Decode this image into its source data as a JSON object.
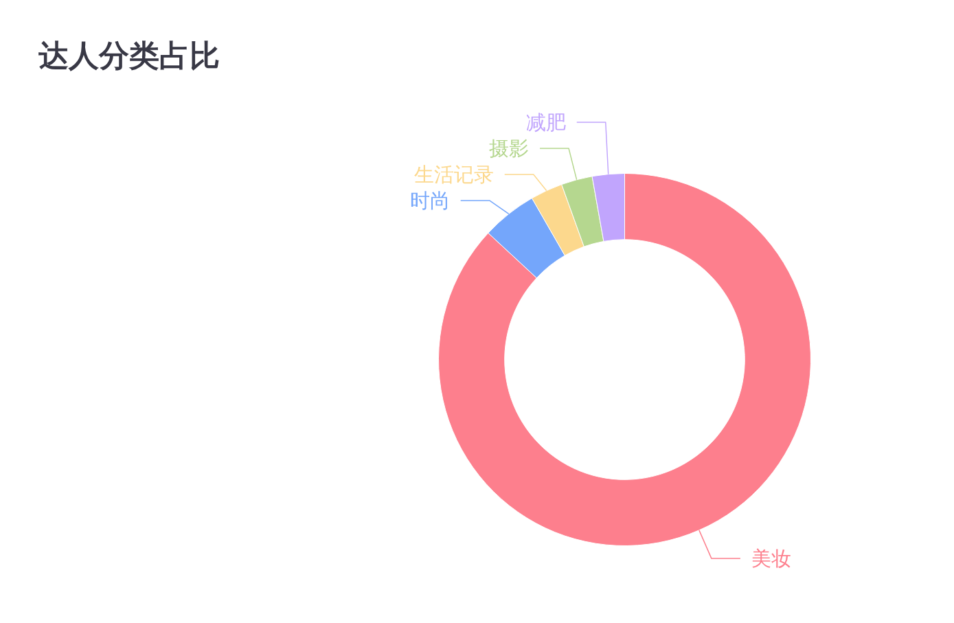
{
  "chart_data": {
    "type": "donut",
    "title": "达人分类占比",
    "categories": [
      "美妆",
      "时尚",
      "生活记录",
      "摄影",
      "减肥"
    ],
    "values": [
      86.9,
      4.8,
      2.8,
      2.7,
      2.8
    ],
    "colors": [
      "#fd7f8d",
      "#74a6fb",
      "#fcd88d",
      "#b5d78f",
      "#c1a5fd"
    ]
  }
}
